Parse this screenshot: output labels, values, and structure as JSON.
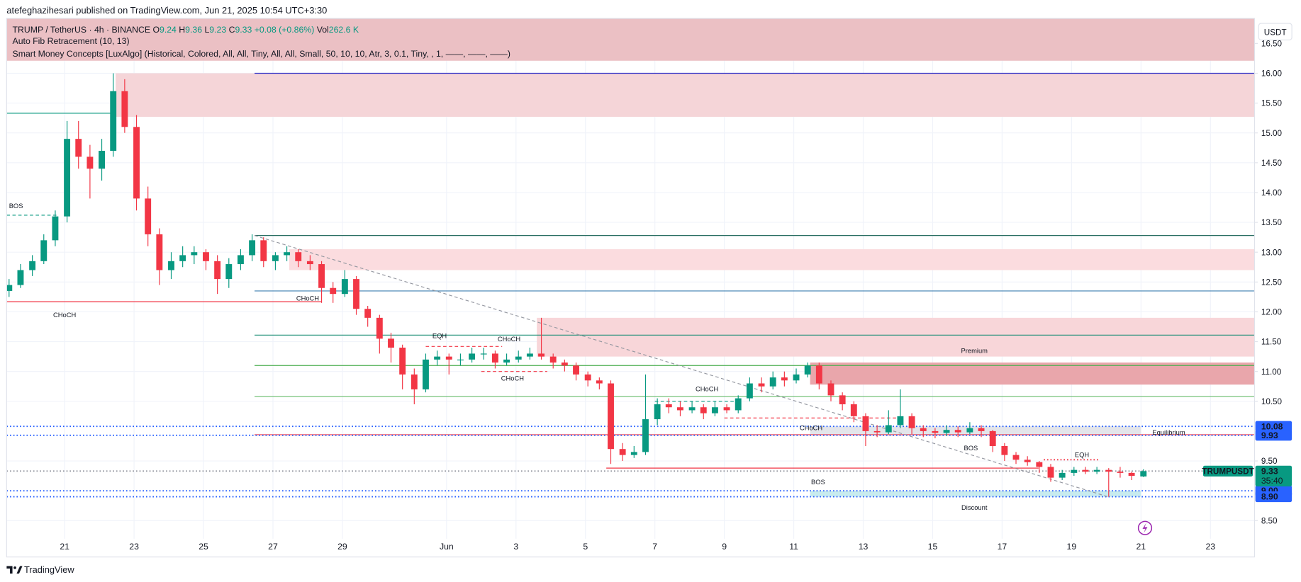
{
  "header": {
    "published": "atefeghazihesari published on TradingView.com, Jun 21, 2025 10:54 UTC+3:30"
  },
  "legend": {
    "symbol": "TRUMP / TetherUS · 4h · BINANCE",
    "ohlc": [
      {
        "key": "O",
        "value": 9.24
      },
      {
        "key": "H",
        "value": 9.36
      },
      {
        "key": "L",
        "value": 9.23
      },
      {
        "key": "C",
        "value": 9.33
      }
    ],
    "change": "+0.08 (+0.86%)",
    "vol_key": "Vol",
    "vol": "262.6 K",
    "indicators": [
      "Auto Fib Retracement (10, 13)",
      "Smart Money Concepts [LuxAlgo] (Historical, Colored, All, All, Tiny, All, All, Small, 50, 10, 10, Atr, 3, 0.1, Tiny, , 1, ——, ——, ——)"
    ]
  },
  "chart_data": {
    "type": "candlestick",
    "axis_currency": "USDT",
    "grid": true,
    "up_color": "#089981",
    "down_color": "#f23645",
    "xlim": [
      19.33,
      55.27
    ],
    "xticks": [
      21,
      23,
      25,
      27,
      29,
      {
        "value": 32,
        "label": "Jun"
      },
      {
        "value": 34,
        "label": "3"
      },
      {
        "value": 36,
        "label": "5"
      },
      {
        "value": 38,
        "label": "7"
      },
      {
        "value": 40,
        "label": "9"
      },
      {
        "value": 42,
        "label": "11"
      },
      {
        "value": 44,
        "label": "13"
      },
      {
        "value": 46,
        "label": "15"
      },
      {
        "value": 48,
        "label": "17"
      },
      {
        "value": 50,
        "label": "19"
      },
      {
        "value": 52,
        "label": "21"
      },
      {
        "value": 54,
        "label": "23"
      }
    ],
    "ylim": [
      7.89,
      16.92
    ],
    "yticks": [
      {
        "value": 8.5,
        "label": "8.50"
      },
      {
        "value": 9.5,
        "label": "9.50"
      },
      {
        "value": 10.5,
        "label": "10.50"
      },
      {
        "value": 11,
        "label": "11.00"
      },
      {
        "value": 11.5,
        "label": "11.50"
      },
      {
        "value": 12,
        "label": "12.00"
      },
      {
        "value": 12.5,
        "label": "12.50"
      },
      {
        "value": 13,
        "label": "13.00"
      },
      {
        "value": 13.5,
        "label": "13.50"
      },
      {
        "value": 14,
        "label": "14.00"
      },
      {
        "value": 14.5,
        "label": "14.50"
      },
      {
        "value": 15,
        "label": "15.00"
      },
      {
        "value": 15.5,
        "label": "15.50"
      },
      {
        "value": 16,
        "label": "16.00"
      },
      {
        "value": 16.5,
        "label": "16.50"
      }
    ],
    "candles": [
      [
        19.4,
        12.35,
        12.55,
        12.25,
        12.45
      ],
      [
        19.73,
        12.45,
        12.8,
        12.4,
        12.7
      ],
      [
        20.07,
        12.7,
        12.95,
        12.6,
        12.85
      ],
      [
        20.4,
        12.85,
        13.3,
        12.8,
        13.2
      ],
      [
        20.73,
        13.2,
        13.7,
        13.1,
        13.6
      ],
      [
        21.07,
        13.6,
        15.2,
        13.5,
        14.9
      ],
      [
        21.4,
        14.9,
        15.2,
        14.4,
        14.6
      ],
      [
        21.73,
        14.6,
        14.8,
        13.9,
        14.4
      ],
      [
        22.07,
        14.4,
        14.9,
        14.2,
        14.7
      ],
      [
        22.4,
        14.7,
        16.0,
        14.6,
        15.7
      ],
      [
        22.73,
        15.7,
        15.9,
        15.0,
        15.1
      ],
      [
        23.07,
        15.1,
        15.3,
        13.7,
        13.9
      ],
      [
        23.4,
        13.9,
        14.1,
        13.1,
        13.3
      ],
      [
        23.73,
        13.3,
        13.4,
        12.45,
        12.7
      ],
      [
        24.07,
        12.7,
        13.0,
        12.55,
        12.85
      ],
      [
        24.4,
        12.85,
        13.1,
        12.75,
        12.95
      ],
      [
        24.73,
        12.95,
        13.1,
        12.8,
        13.0
      ],
      [
        25.07,
        13.0,
        13.05,
        12.7,
        12.85
      ],
      [
        25.4,
        12.85,
        12.95,
        12.3,
        12.55
      ],
      [
        25.73,
        12.55,
        12.9,
        12.4,
        12.8
      ],
      [
        26.07,
        12.8,
        13.05,
        12.7,
        12.95
      ],
      [
        26.4,
        12.95,
        13.3,
        12.85,
        13.2
      ],
      [
        26.73,
        13.2,
        13.25,
        12.75,
        12.85
      ],
      [
        27.07,
        12.85,
        13.0,
        12.7,
        12.95
      ],
      [
        27.4,
        12.95,
        13.1,
        12.85,
        13.0
      ],
      [
        27.73,
        13.0,
        13.05,
        12.75,
        12.85
      ],
      [
        28.07,
        12.85,
        12.95,
        12.7,
        12.8
      ],
      [
        28.4,
        12.8,
        12.85,
        12.15,
        12.4
      ],
      [
        28.73,
        12.4,
        12.5,
        12.15,
        12.3
      ],
      [
        29.07,
        12.3,
        12.7,
        12.25,
        12.55
      ],
      [
        29.4,
        12.55,
        12.6,
        11.95,
        12.05
      ],
      [
        29.73,
        12.05,
        12.1,
        11.75,
        11.9
      ],
      [
        30.07,
        11.9,
        11.95,
        11.3,
        11.55
      ],
      [
        30.4,
        11.55,
        11.65,
        11.15,
        11.4
      ],
      [
        30.73,
        11.4,
        11.45,
        10.7,
        10.95
      ],
      [
        31.07,
        10.95,
        11.05,
        10.45,
        10.7
      ],
      [
        31.4,
        10.7,
        11.3,
        10.65,
        11.2
      ],
      [
        31.73,
        11.2,
        11.35,
        11.1,
        11.25
      ],
      [
        32.07,
        11.25,
        11.3,
        10.95,
        11.2
      ],
      [
        32.4,
        11.2,
        11.3,
        11.1,
        11.2
      ],
      [
        32.73,
        11.2,
        11.4,
        11.15,
        11.3
      ],
      [
        33.07,
        11.3,
        11.4,
        11.2,
        11.3
      ],
      [
        33.4,
        11.3,
        11.35,
        11.05,
        11.15
      ],
      [
        33.73,
        11.15,
        11.3,
        11.1,
        11.2
      ],
      [
        34.07,
        11.2,
        11.35,
        11.15,
        11.25
      ],
      [
        34.4,
        11.25,
        11.4,
        11.2,
        11.3
      ],
      [
        34.73,
        11.3,
        11.9,
        11.2,
        11.25
      ],
      [
        35.07,
        11.25,
        11.3,
        11.05,
        11.15
      ],
      [
        35.4,
        11.15,
        11.2,
        11.0,
        11.1
      ],
      [
        35.73,
        11.1,
        11.15,
        10.85,
        10.95
      ],
      [
        36.07,
        10.95,
        11.0,
        10.75,
        10.85
      ],
      [
        36.4,
        10.85,
        10.9,
        10.7,
        10.8
      ],
      [
        36.73,
        10.8,
        10.85,
        9.45,
        9.7
      ],
      [
        37.07,
        9.7,
        9.8,
        9.5,
        9.6
      ],
      [
        37.4,
        9.6,
        9.75,
        9.55,
        9.65
      ],
      [
        37.73,
        9.65,
        10.95,
        9.6,
        10.2
      ],
      [
        38.07,
        10.2,
        10.55,
        10.1,
        10.45
      ],
      [
        38.4,
        10.45,
        10.55,
        10.3,
        10.4
      ],
      [
        38.73,
        10.4,
        10.5,
        10.25,
        10.35
      ],
      [
        39.07,
        10.35,
        10.5,
        10.3,
        10.4
      ],
      [
        39.4,
        10.4,
        10.45,
        10.2,
        10.3
      ],
      [
        39.73,
        10.3,
        10.5,
        10.25,
        10.4
      ],
      [
        40.07,
        10.4,
        10.45,
        10.3,
        10.35
      ],
      [
        40.4,
        10.35,
        10.6,
        10.3,
        10.55
      ],
      [
        40.73,
        10.55,
        10.9,
        10.5,
        10.8
      ],
      [
        41.07,
        10.8,
        10.9,
        10.65,
        10.75
      ],
      [
        41.4,
        10.75,
        11.0,
        10.7,
        10.9
      ],
      [
        41.73,
        10.9,
        11.0,
        10.75,
        10.85
      ],
      [
        42.07,
        10.85,
        11.05,
        10.8,
        10.95
      ],
      [
        42.4,
        10.95,
        11.15,
        10.9,
        11.1
      ],
      [
        42.73,
        11.1,
        11.15,
        10.7,
        10.8
      ],
      [
        43.07,
        10.8,
        10.85,
        10.5,
        10.6
      ],
      [
        43.4,
        10.6,
        10.65,
        10.35,
        10.45
      ],
      [
        43.73,
        10.45,
        10.5,
        10.15,
        10.25
      ],
      [
        44.07,
        10.25,
        10.3,
        9.75,
        10.0
      ],
      [
        44.4,
        10.0,
        10.1,
        9.9,
        9.98
      ],
      [
        44.73,
        9.98,
        10.35,
        9.95,
        10.1
      ],
      [
        45.07,
        10.1,
        10.7,
        10.05,
        10.25
      ],
      [
        45.4,
        10.25,
        10.3,
        9.95,
        10.05
      ],
      [
        45.73,
        10.05,
        10.1,
        9.9,
        10.0
      ],
      [
        46.07,
        10.0,
        10.05,
        9.88,
        9.97
      ],
      [
        46.4,
        9.97,
        10.1,
        9.92,
        10.02
      ],
      [
        46.73,
        10.02,
        10.08,
        9.9,
        9.98
      ],
      [
        47.07,
        9.98,
        10.15,
        9.95,
        10.05
      ],
      [
        47.4,
        10.05,
        10.1,
        9.9,
        10.0
      ],
      [
        47.73,
        10.0,
        10.02,
        9.65,
        9.75
      ],
      [
        48.07,
        9.75,
        9.8,
        9.5,
        9.6
      ],
      [
        48.4,
        9.6,
        9.65,
        9.45,
        9.52
      ],
      [
        48.73,
        9.52,
        9.58,
        9.42,
        9.48
      ],
      [
        49.07,
        9.48,
        9.5,
        9.3,
        9.4
      ],
      [
        49.4,
        9.4,
        9.45,
        9.15,
        9.22
      ],
      [
        49.73,
        9.22,
        9.35,
        9.18,
        9.3
      ],
      [
        50.07,
        9.3,
        9.4,
        9.25,
        9.35
      ],
      [
        50.4,
        9.35,
        9.4,
        9.28,
        9.32
      ],
      [
        50.73,
        9.32,
        9.4,
        9.28,
        9.35
      ],
      [
        51.07,
        9.35,
        9.38,
        8.9,
        9.32
      ],
      [
        51.4,
        9.32,
        9.4,
        9.22,
        9.3
      ],
      [
        51.73,
        9.3,
        9.32,
        9.18,
        9.25
      ],
      [
        52.07,
        9.24,
        9.36,
        9.23,
        9.33
      ]
    ],
    "zones": [
      {
        "x": [
          19.33,
          55.27
        ],
        "y": [
          16.21,
          16.92
        ],
        "color": "#ebc0c4"
      },
      {
        "x": [
          22.47,
          55.27
        ],
        "y": [
          15.27,
          16.0
        ],
        "color": "#f5d5d8"
      },
      {
        "x": [
          27.47,
          55.27
        ],
        "y": [
          12.7,
          13.05
        ],
        "color": "#fbdcdf"
      },
      {
        "x": [
          34.6,
          55.27
        ],
        "y": [
          11.25,
          11.9
        ],
        "color": "#f8d6d9"
      },
      {
        "x": [
          42.47,
          55.27
        ],
        "y": [
          10.78,
          11.15
        ],
        "color": "#e9a6ab"
      },
      {
        "x": [
          42.47,
          52.0
        ],
        "y": [
          9.93,
          10.08
        ],
        "color": "#e3e5ea"
      },
      {
        "x": [
          42.47,
          52.0
        ],
        "y": [
          8.9,
          9.0
        ],
        "color": "#c8ebee"
      }
    ],
    "lines": [
      {
        "y": 16.0,
        "x": [
          26.47,
          55.27
        ],
        "color": "#3030c8",
        "style": "solid"
      },
      {
        "y": 15.33,
        "x": [
          19.33,
          22.47
        ],
        "color": "#089981",
        "style": "solid"
      },
      {
        "y": 13.62,
        "x": [
          19.33,
          20.8
        ],
        "color": "#089981",
        "style": "dashed"
      },
      {
        "y": 13.28,
        "x": [
          26.47,
          55.27
        ],
        "color": "#2a6f62",
        "style": "solid"
      },
      {
        "y": 12.35,
        "x": [
          26.47,
          55.27
        ],
        "color": "#3d7fb0",
        "style": "solid"
      },
      {
        "y": 12.17,
        "x": [
          19.33,
          28.4
        ],
        "color": "#f23645",
        "style": "solid"
      },
      {
        "y": 11.61,
        "x": [
          26.47,
          55.27
        ],
        "color": "#1e8f77",
        "style": "solid"
      },
      {
        "y": 11.1,
        "x": [
          26.47,
          55.27
        ],
        "color": "#4caf50",
        "style": "solid"
      },
      {
        "y": 10.58,
        "x": [
          26.47,
          55.27
        ],
        "color": "#66bb6a",
        "style": "solid"
      },
      {
        "y": 9.94,
        "x": [
          26.47,
          55.27
        ],
        "color": "#f23645",
        "style": "solid"
      },
      {
        "y": 10.08,
        "x": [
          19.33,
          55.27
        ],
        "color": "#2962ff",
        "style": "dotted"
      },
      {
        "y": 9.93,
        "x": [
          19.33,
          55.27
        ],
        "color": "#2962ff",
        "style": "dotted"
      },
      {
        "y": 9.0,
        "x": [
          19.33,
          55.27
        ],
        "color": "#2962ff",
        "style": "dotted"
      },
      {
        "y": 8.9,
        "x": [
          19.33,
          55.27
        ],
        "color": "#2962ff",
        "style": "dotted"
      },
      {
        "y": 9.33,
        "x": [
          19.33,
          55.27
        ],
        "color": "#9598a1",
        "style": "dotted"
      },
      {
        "y": 9.38,
        "x": [
          36.6,
          49.05
        ],
        "color": "#f23645",
        "style": "solid"
      },
      {
        "y": 11.42,
        "x": [
          31.4,
          33.6
        ],
        "color": "#f23645",
        "style": "dashed"
      },
      {
        "y": 11.0,
        "x": [
          33.0,
          34.9
        ],
        "color": "#f23645",
        "style": "dashed"
      },
      {
        "y": 10.5,
        "x": [
          38.0,
          40.5
        ],
        "color": "#089981",
        "style": "dashed"
      },
      {
        "y": 10.22,
        "x": [
          40.0,
          45.0
        ],
        "color": "#f23645",
        "style": "dashed"
      },
      {
        "y": 9.52,
        "x": [
          49.2,
          50.8
        ],
        "color": "#f23645",
        "style": "dotted"
      }
    ],
    "trendlines": [
      {
        "x": [
          26.47,
          51.05
        ],
        "y": [
          13.28,
          8.9
        ],
        "color": "#9598a1",
        "style": "dashed"
      }
    ],
    "annotations": [
      {
        "text": "BOS",
        "x": 19.6,
        "y": 13.78,
        "color": "#089981"
      },
      {
        "text": "CHoCH",
        "x": 21.0,
        "y": 11.95,
        "color": "#f23645"
      },
      {
        "text": "CHoCH",
        "x": 28.0,
        "y": 12.23,
        "color": "#f23645"
      },
      {
        "text": "EQH",
        "x": 31.8,
        "y": 11.6,
        "color": "#f23645"
      },
      {
        "text": "CHoCH",
        "x": 33.8,
        "y": 11.55,
        "color": "#089981"
      },
      {
        "text": "CHoCH",
        "x": 33.9,
        "y": 10.89,
        "color": "#f23645"
      },
      {
        "text": "CHoCH",
        "x": 39.5,
        "y": 10.71,
        "color": "#089981"
      },
      {
        "text": "CHoCH",
        "x": 42.5,
        "y": 10.06,
        "color": "#f23645"
      },
      {
        "text": "BOS",
        "x": 47.1,
        "y": 9.72,
        "color": "#f23645"
      },
      {
        "text": "BOS",
        "x": 42.7,
        "y": 9.15,
        "color": "#f23645"
      },
      {
        "text": "EQH",
        "x": 50.3,
        "y": 9.61,
        "color": "#f23645"
      },
      {
        "text": "Premium",
        "x": 47.2,
        "y": 11.35,
        "color": "#f23645"
      },
      {
        "text": "Equilibrium",
        "x": 52.8,
        "y": 9.98,
        "color": "#b2b5be"
      },
      {
        "text": "Discount",
        "x": 47.2,
        "y": 8.72,
        "color": "#089981"
      }
    ],
    "price_labels": [
      {
        "value": 10.08,
        "color": "#2962ff"
      },
      {
        "value": 9.93,
        "color": "#2962ff"
      },
      {
        "value": 9,
        "label": "9.00",
        "color": "#2962ff"
      },
      {
        "value": 8.9,
        "label": "8.90",
        "color": "#2962ff"
      }
    ],
    "last_price": {
      "name": "TRUMPUSDT",
      "value": 9.33,
      "countdown": "35:40",
      "color": "#089981"
    }
  },
  "footer": {
    "brand": "TradingView"
  }
}
